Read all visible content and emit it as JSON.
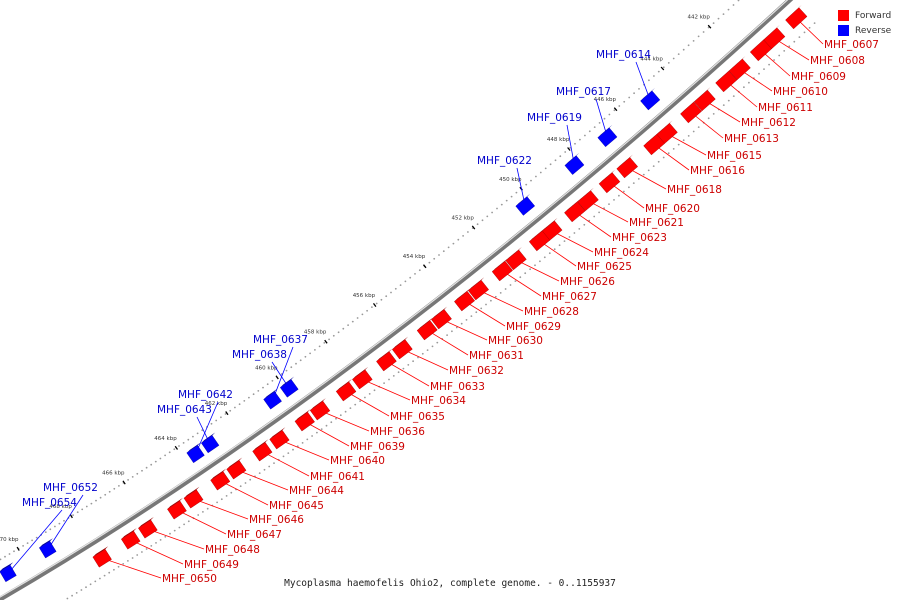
{
  "legend": {
    "forward_label": "Forward",
    "reverse_label": "Reverse",
    "forward_color": "#ff0000",
    "reverse_color": "#0000ff"
  },
  "caption": "Mycoplasma haemofelis Ohio2, complete genome. - 0..1155937",
  "ticks": [
    "442 kbp",
    "444 kbp",
    "446 kbp",
    "448 kbp",
    "450 kbp",
    "452 kbp",
    "454 kbp",
    "456 kbp",
    "458 kbp",
    "460 kbp",
    "462 kbp",
    "464 kbp",
    "466 kbp",
    "468 kbp",
    "470 kbp"
  ],
  "forward_genes": [
    "MHF_0607",
    "MHF_0608",
    "MHF_0609",
    "MHF_0610",
    "MHF_0611",
    "MHF_0612",
    "MHF_0613",
    "MHF_0615",
    "MHF_0616",
    "MHF_0618",
    "MHF_0620",
    "MHF_0621",
    "MHF_0623",
    "MHF_0624",
    "MHF_0625",
    "MHF_0626",
    "MHF_0627",
    "MHF_0628",
    "MHF_0629",
    "MHF_0630",
    "MHF_0631",
    "MHF_0632",
    "MHF_0633",
    "MHF_0634",
    "MHF_0635",
    "MHF_0636",
    "MHF_0639",
    "MHF_0640",
    "MHF_0641",
    "MHF_0644",
    "MHF_0645",
    "MHF_0646",
    "MHF_0647",
    "MHF_0648",
    "MHF_0649",
    "MHF_0650"
  ],
  "reverse_genes": [
    "MHF_0614",
    "MHF_0617",
    "MHF_0619",
    "MHF_0622",
    "MHF_0637",
    "MHF_0638",
    "MHF_0642",
    "MHF_0643",
    "MHF_0652",
    "MHF_0654"
  ]
}
